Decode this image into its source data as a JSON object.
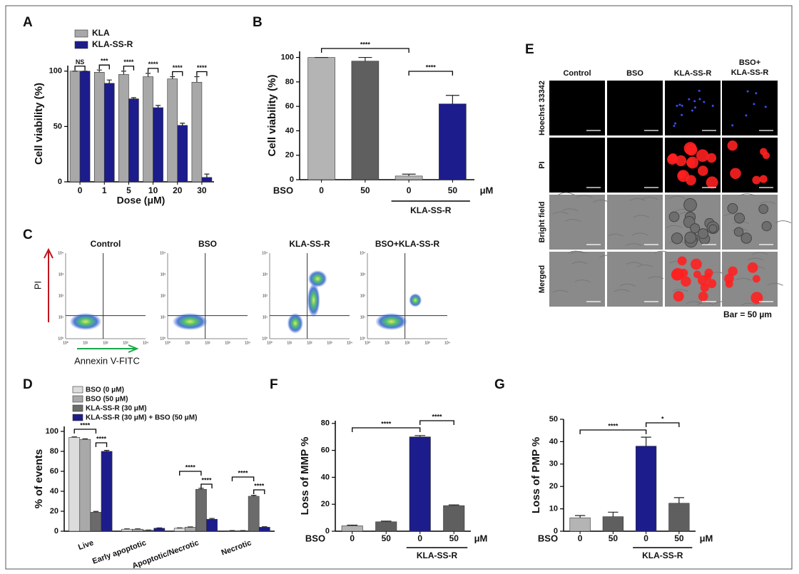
{
  "chart_data": [
    {
      "panel": "A",
      "type": "bar",
      "y_label": "Cell viability (%)",
      "x_label": "Dose (μM)",
      "categories": [
        "0",
        "1",
        "5",
        "10",
        "20",
        "30"
      ],
      "series": [
        {
          "name": "KLA",
          "color": "#a8a8a8",
          "values": [
            100,
            99,
            97,
            95,
            93,
            90
          ],
          "errors": [
            0,
            2,
            3,
            3,
            2,
            5
          ]
        },
        {
          "name": "KLA-SS-R",
          "color": "#1c1c8c",
          "values": [
            100,
            89,
            75,
            67,
            51,
            4
          ],
          "errors": [
            0,
            3,
            1,
            2,
            2,
            3
          ]
        }
      ],
      "ylim": [
        0,
        105
      ],
      "yticks": [
        0,
        50,
        100
      ],
      "legend": "upper left",
      "significance": [
        "NS",
        "***",
        "****",
        "****",
        "****",
        "****"
      ]
    },
    {
      "panel": "B",
      "type": "bar",
      "y_label": "Cell viability (%)",
      "categories": [
        "0",
        "50",
        "0",
        "50"
      ],
      "values": [
        100,
        97,
        3,
        62
      ],
      "errors": [
        0,
        3,
        1.5,
        7
      ],
      "colors": [
        "#b4b4b4",
        "#5f5f5f",
        "#b4b4b4",
        "#1c1c8c"
      ],
      "row_label": "BSO",
      "unit": "μM",
      "group_label": "KLA-SS-R",
      "ylim": [
        0,
        105
      ],
      "yticks": [
        0,
        20,
        40,
        60,
        80,
        100
      ],
      "significance": [
        "****",
        "****"
      ]
    },
    {
      "panel": "D",
      "type": "bar",
      "y_label": "% of events",
      "categories": [
        "Live",
        "Early apoptotic",
        "Apoptotic/Necrotic",
        "Necrotic"
      ],
      "series": [
        {
          "name": "BSO (0 μM)",
          "color": "#dcdcdc",
          "values": [
            94,
            2,
            3,
            0.5
          ],
          "errors": [
            0.5,
            0.3,
            0.3,
            0.1
          ]
        },
        {
          "name": "BSO (50 μM)",
          "color": "#a9a9a9",
          "values": [
            92,
            2,
            4,
            0.5
          ],
          "errors": [
            0.5,
            0.3,
            0.3,
            0.1
          ]
        },
        {
          "name": "KLA-SS-R (30 μM)",
          "color": "#6b6b6b",
          "values": [
            19,
            1,
            42,
            35
          ],
          "errors": [
            0.8,
            0.2,
            1,
            1
          ]
        },
        {
          "name": "KLA-SS-R (30 μM) + BSO (50 μM)",
          "color": "#1c1c8c",
          "values": [
            80,
            3,
            12,
            4
          ],
          "errors": [
            1,
            0.3,
            0.8,
            0.5
          ]
        }
      ],
      "ylim": [
        0,
        105
      ],
      "yticks": [
        0,
        20,
        40,
        60,
        80,
        100
      ],
      "legend": "top",
      "significance": [
        "****",
        "****",
        "****",
        "****",
        "****",
        "****"
      ]
    },
    {
      "panel": "F",
      "type": "bar",
      "y_label": "Loss of MMP %",
      "categories": [
        "0",
        "50",
        "0",
        "50"
      ],
      "values": [
        4,
        7,
        70,
        19
      ],
      "errors": [
        0.5,
        0.5,
        1,
        0.5
      ],
      "colors": [
        "#b4b4b4",
        "#5f5f5f",
        "#1c1c8c",
        "#5f5f5f"
      ],
      "row_label": "BSO",
      "unit": "μM",
      "group_label": "KLA-SS-R",
      "ylim": [
        0,
        82
      ],
      "yticks": [
        0,
        20,
        40,
        60,
        80
      ],
      "significance": [
        "****",
        "****"
      ]
    },
    {
      "panel": "G",
      "type": "bar",
      "y_label": "Loss of PMP %",
      "categories": [
        "0",
        "50",
        "0",
        "50"
      ],
      "values": [
        6,
        6.5,
        38,
        12.5
      ],
      "errors": [
        1,
        2,
        4,
        2.5
      ],
      "colors": [
        "#b4b4b4",
        "#5f5f5f",
        "#1c1c8c",
        "#5f5f5f"
      ],
      "row_label": "BSO",
      "unit": "μM",
      "group_label": "KLA-SS-R",
      "ylim": [
        0,
        50
      ],
      "yticks": [
        0,
        10,
        20,
        30,
        40,
        50
      ],
      "significance": [
        "****",
        "*"
      ]
    }
  ],
  "panel_c": {
    "panel": "C",
    "titles": [
      "Control",
      "BSO",
      "KLA-SS-R",
      "BSO+KLA-SS-R"
    ],
    "y_label": "PI",
    "x_label": "Annexin V-FITC",
    "decade_labels": [
      "10⁰",
      "10¹",
      "10²",
      "10³",
      "10⁴"
    ]
  },
  "panel_e": {
    "panel": "E",
    "column_labels": [
      "Control",
      "BSO",
      "KLA-SS-R",
      [
        "BSO+",
        "KLA-SS-R"
      ]
    ],
    "row_labels": [
      "Hoechst 33342",
      "PI",
      "Bright field",
      "Merged"
    ],
    "scale_note": "Bar = 50 µm"
  }
}
